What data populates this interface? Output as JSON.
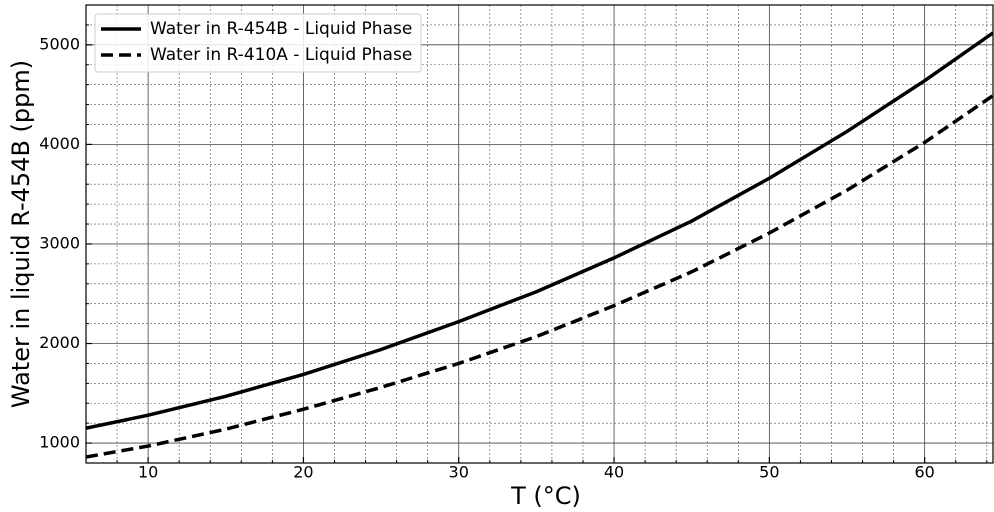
{
  "chart_data": {
    "type": "line",
    "xlabel": "T (°C)",
    "ylabel": "Water in liquid R-454B (ppm)",
    "x": [
      6,
      10,
      15,
      20,
      25,
      30,
      35,
      40,
      45,
      50,
      55,
      60,
      64.4
    ],
    "series": [
      {
        "name": "Water in R-454B - Liquid Phase",
        "color": "#000000",
        "style": "solid",
        "values": [
          1150,
          1280,
          1470,
          1690,
          1940,
          2220,
          2520,
          2860,
          3230,
          3660,
          4130,
          4640,
          5120
        ]
      },
      {
        "name": "Water in R-410A - Liquid Phase",
        "color": "#000000",
        "style": "dashed",
        "values": [
          860,
          970,
          1140,
          1340,
          1560,
          1800,
          2070,
          2380,
          2720,
          3110,
          3540,
          4020,
          4490
        ]
      }
    ],
    "xlim": [
      6,
      64.4
    ],
    "ylim": [
      800,
      5400
    ],
    "xticks": [
      10,
      20,
      30,
      40,
      50,
      60
    ],
    "yticks": [
      1000,
      2000,
      3000,
      4000,
      5000
    ],
    "xminorticks": [
      8,
      12,
      14,
      16,
      18,
      22,
      24,
      26,
      28,
      32,
      34,
      36,
      38,
      42,
      44,
      46,
      48,
      52,
      54,
      56,
      58,
      62,
      64
    ],
    "yminorticks": [
      1200,
      1400,
      1600,
      1800,
      2200,
      2400,
      2600,
      2800,
      3200,
      3400,
      3600,
      3800,
      4200,
      4400,
      4600,
      4800,
      5200
    ],
    "grid": true,
    "minor_grid": true,
    "legend": "upper left"
  }
}
